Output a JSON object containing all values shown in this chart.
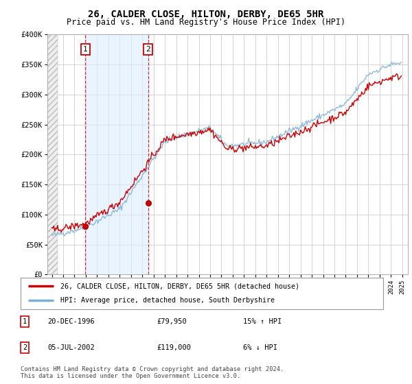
{
  "title": "26, CALDER CLOSE, HILTON, DERBY, DE65 5HR",
  "subtitle": "Price paid vs. HM Land Registry's House Price Index (HPI)",
  "title_fontsize": 10,
  "subtitle_fontsize": 8.5,
  "ylim": [
    0,
    400000
  ],
  "yticks": [
    0,
    50000,
    100000,
    150000,
    200000,
    250000,
    300000,
    350000,
    400000
  ],
  "ytick_labels": [
    "£0",
    "£50K",
    "£100K",
    "£150K",
    "£200K",
    "£250K",
    "£300K",
    "£350K",
    "£400K"
  ],
  "xlim_start": 1993.6,
  "xlim_end": 2025.5,
  "sale1_date": "20-DEC-1996",
  "sale1_price": 79950,
  "sale1_x": 1996.97,
  "sale1_hpi_pct": "15%",
  "sale1_hpi_dir": "↑",
  "sale2_date": "05-JUL-2002",
  "sale2_price": 119000,
  "sale2_x": 2002.51,
  "sale2_hpi_pct": "6%",
  "sale2_hpi_dir": "↓",
  "legend_label1": "26, CALDER CLOSE, HILTON, DERBY, DE65 5HR (detached house)",
  "legend_label2": "HPI: Average price, detached house, South Derbyshire",
  "footer": "Contains HM Land Registry data © Crown copyright and database right 2024.\nThis data is licensed under the Open Government Licence v3.0.",
  "line_color_price": "#cc0000",
  "line_color_hpi": "#7ab0d4",
  "bg_color": "#ffffff",
  "plot_bg": "#ffffff",
  "grid_color": "#cccccc",
  "shaded_region_color": "#ddeeff"
}
